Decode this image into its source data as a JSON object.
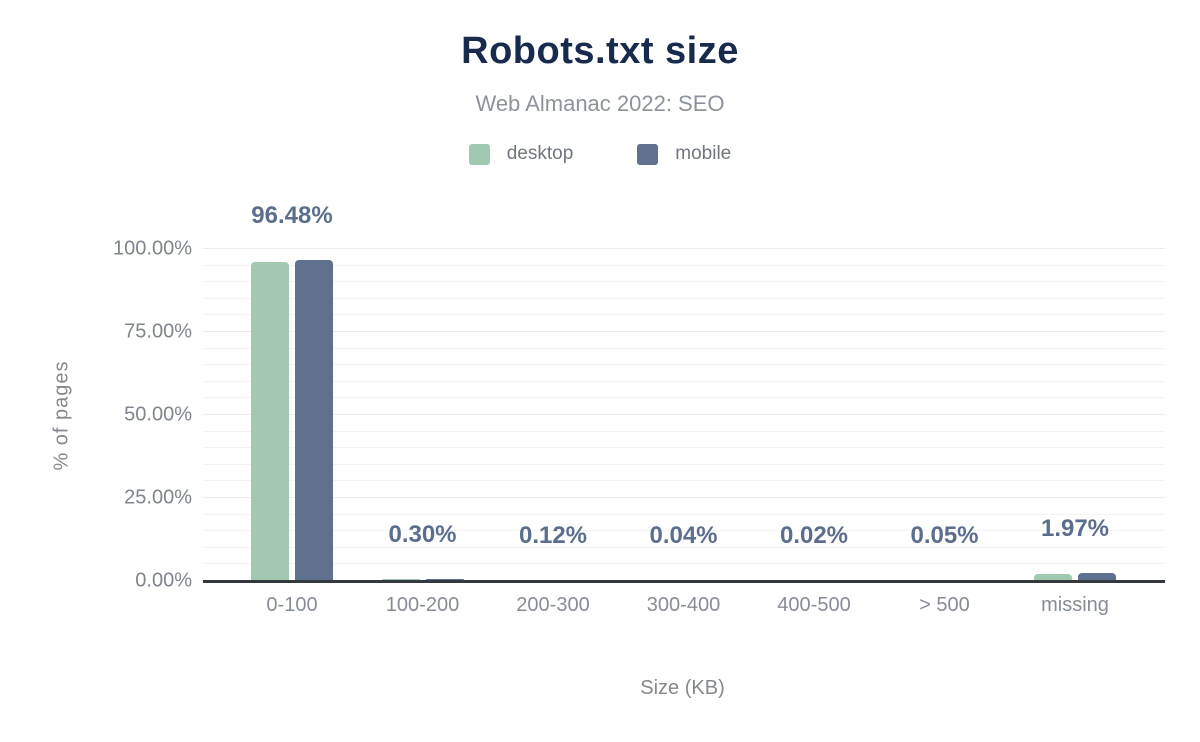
{
  "header": {
    "title": "Robots.txt size",
    "subtitle": "Web Almanac 2022: SEO"
  },
  "legend": {
    "items": [
      {
        "label": "desktop",
        "color": "#a3c8b2"
      },
      {
        "label": "mobile",
        "color": "#5f718e"
      }
    ]
  },
  "chart_data": {
    "type": "bar",
    "title": "Robots.txt size",
    "subtitle": "Web Almanac 2022: SEO",
    "categories": [
      "0-100",
      "100-200",
      "200-300",
      "300-400",
      "400-500",
      "> 500",
      "missing"
    ],
    "series": [
      {
        "name": "desktop",
        "color": "#a3c8b2",
        "values": [
          95.9,
          0.3,
          0.12,
          0.04,
          0.02,
          0.05,
          1.8
        ]
      },
      {
        "name": "mobile",
        "color": "#5f718e",
        "values": [
          96.48,
          0.3,
          0.12,
          0.04,
          0.02,
          0.05,
          1.97
        ]
      }
    ],
    "data_labels": [
      "96.48%",
      "0.30%",
      "0.12%",
      "0.04%",
      "0.02%",
      "0.05%",
      "1.97%"
    ],
    "xlabel": "Size (KB)",
    "ylabel": "% of pages",
    "ylim": [
      0,
      100
    ],
    "yticks": [
      {
        "value": 0,
        "label": "0.00%"
      },
      {
        "value": 25,
        "label": "25.00%"
      },
      {
        "value": 50,
        "label": "50.00%"
      },
      {
        "value": 75,
        "label": "75.00%"
      },
      {
        "value": 100,
        "label": "100.00%"
      }
    ],
    "grid": "horizontal minor lines every 5%, major every 25%",
    "legend_position": "top"
  },
  "colors": {
    "title_text": "#182b4d",
    "subtitle_text": "#8d939c",
    "data_label_text": "#5b6e8d",
    "axis_text": "#85898f",
    "axis_line": "#34383f",
    "gridline_minor": "#f2f3f4",
    "gridline_major": "#eaecee"
  }
}
